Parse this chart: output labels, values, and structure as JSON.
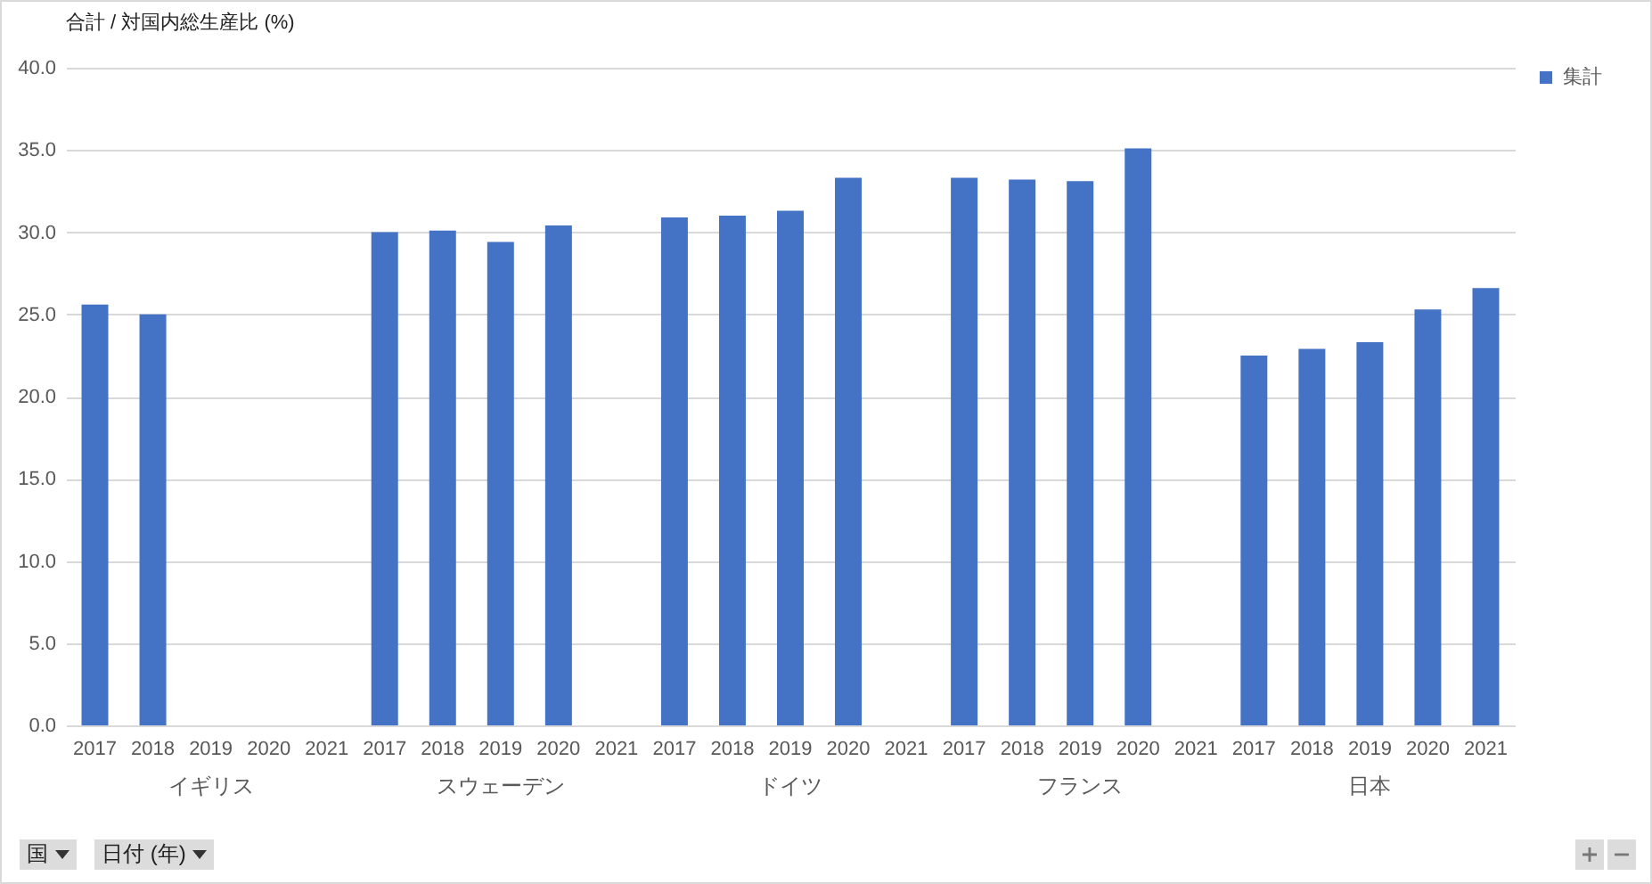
{
  "chart_data": {
    "type": "bar",
    "title": "合計 / 対国内総生産比 (%)",
    "categories": [
      "2017",
      "2018",
      "2019",
      "2020",
      "2021",
      "2017",
      "2018",
      "2019",
      "2020",
      "2021",
      "2017",
      "2018",
      "2019",
      "2020",
      "2021",
      "2017",
      "2018",
      "2019",
      "2020",
      "2021",
      "2017",
      "2018",
      "2019",
      "2020",
      "2021"
    ],
    "series": [
      {
        "name": "集計",
        "color": "#4472c4",
        "values": [
          25.6,
          25.0,
          null,
          null,
          null,
          30.0,
          30.1,
          29.4,
          30.4,
          null,
          30.9,
          31.0,
          31.3,
          33.3,
          null,
          33.3,
          33.2,
          33.1,
          35.1,
          null,
          22.5,
          22.9,
          23.3,
          25.3,
          26.6
        ]
      }
    ],
    "annotations": [
      "イギリス",
      "スウェーデン",
      "ドイツ",
      "フランス",
      "日本",
      "国",
      "日付 (年)"
    ],
    "ylim": [
      0,
      40
    ],
    "yticks": [
      {
        "value": 0,
        "label": "0.0"
      },
      {
        "value": 5,
        "label": "5.0"
      },
      {
        "value": 10,
        "label": "10.0"
      },
      {
        "value": 15,
        "label": "15.0"
      },
      {
        "value": 20,
        "label": "20.0"
      },
      {
        "value": 25,
        "label": "25.0"
      },
      {
        "value": 30,
        "label": "30.0"
      },
      {
        "value": 35,
        "label": "35.0"
      },
      {
        "value": 40,
        "label": "40.0"
      }
    ],
    "grid": "y",
    "legend": "right"
  }
}
